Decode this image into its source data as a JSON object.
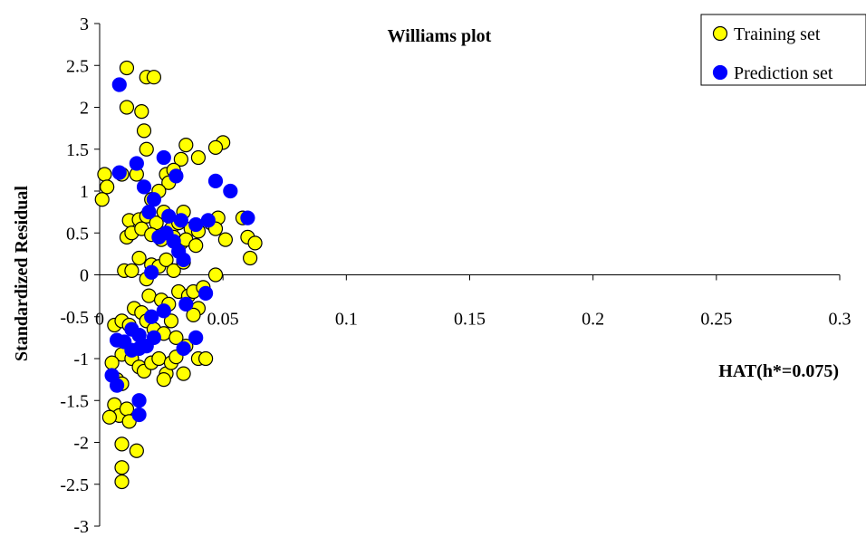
{
  "chart_data": {
    "type": "scatter",
    "title": "Williams plot",
    "xlabel": "HAT(h*=0.075)",
    "ylabel": "Standardized Residual",
    "xlim": [
      0,
      0.3
    ],
    "ylim": [
      -3,
      3
    ],
    "x_ticks": [
      "0",
      "0.05",
      "0.1",
      "0.15",
      "0.2",
      "0.25",
      "0.3"
    ],
    "y_ticks": [
      "3",
      "2.5",
      "2",
      "1.5",
      "1",
      "0.5",
      "0",
      "-0.5",
      "-1",
      "-1.5",
      "-2",
      "-2.5",
      "-3"
    ],
    "x_tick_values": [
      0,
      0.05,
      0.1,
      0.15,
      0.2,
      0.25,
      0.3
    ],
    "y_tick_values": [
      3,
      2.5,
      2,
      1.5,
      1,
      0.5,
      0,
      -0.5,
      -1,
      -1.5,
      -2,
      -2.5,
      -3
    ],
    "grid": false,
    "legend_position": "top-right",
    "series": [
      {
        "name": "Training set",
        "color": "#ffff00",
        "edge_color": "#000000",
        "points": [
          [
            0.011,
            2.47
          ],
          [
            0.011,
            2.0
          ],
          [
            0.017,
            1.95
          ],
          [
            0.019,
            2.36
          ],
          [
            0.022,
            2.36
          ],
          [
            0.018,
            1.72
          ],
          [
            0.019,
            1.5
          ],
          [
            0.035,
            1.55
          ],
          [
            0.05,
            1.58
          ],
          [
            0.047,
            1.52
          ],
          [
            0.002,
            1.2
          ],
          [
            0.003,
            1.05
          ],
          [
            0.001,
            0.9
          ],
          [
            0.009,
            1.2
          ],
          [
            0.015,
            1.2
          ],
          [
            0.027,
            1.2
          ],
          [
            0.033,
            1.38
          ],
          [
            0.04,
            1.4
          ],
          [
            0.028,
            1.1
          ],
          [
            0.03,
            1.25
          ],
          [
            0.021,
            0.9
          ],
          [
            0.024,
            1.0
          ],
          [
            0.012,
            0.65
          ],
          [
            0.016,
            0.66
          ],
          [
            0.019,
            0.7
          ],
          [
            0.023,
            0.62
          ],
          [
            0.026,
            0.75
          ],
          [
            0.029,
            0.55
          ],
          [
            0.032,
            0.62
          ],
          [
            0.034,
            0.75
          ],
          [
            0.037,
            0.55
          ],
          [
            0.04,
            0.52
          ],
          [
            0.045,
            0.62
          ],
          [
            0.048,
            0.68
          ],
          [
            0.047,
            0.55
          ],
          [
            0.051,
            0.42
          ],
          [
            0.058,
            0.68
          ],
          [
            0.06,
            0.45
          ],
          [
            0.063,
            0.38
          ],
          [
            0.061,
            0.2
          ],
          [
            0.011,
            0.45
          ],
          [
            0.013,
            0.5
          ],
          [
            0.017,
            0.55
          ],
          [
            0.021,
            0.48
          ],
          [
            0.025,
            0.42
          ],
          [
            0.03,
            0.45
          ],
          [
            0.033,
            0.38
          ],
          [
            0.035,
            0.42
          ],
          [
            0.039,
            0.35
          ],
          [
            0.01,
            0.05
          ],
          [
            0.013,
            0.05
          ],
          [
            0.016,
            0.2
          ],
          [
            0.019,
            -0.05
          ],
          [
            0.021,
            0.12
          ],
          [
            0.024,
            0.1
          ],
          [
            0.027,
            0.18
          ],
          [
            0.03,
            0.05
          ],
          [
            0.034,
            0.15
          ],
          [
            0.047,
            0.0
          ],
          [
            0.02,
            -0.25
          ],
          [
            0.025,
            -0.3
          ],
          [
            0.028,
            -0.35
          ],
          [
            0.032,
            -0.2
          ],
          [
            0.036,
            -0.25
          ],
          [
            0.04,
            -0.4
          ],
          [
            0.038,
            -0.2
          ],
          [
            0.042,
            -0.15
          ],
          [
            0.014,
            -0.4
          ],
          [
            0.017,
            -0.45
          ],
          [
            0.006,
            -0.6
          ],
          [
            0.009,
            -0.55
          ],
          [
            0.012,
            -0.6
          ],
          [
            0.016,
            -0.72
          ],
          [
            0.019,
            -0.55
          ],
          [
            0.022,
            -0.65
          ],
          [
            0.026,
            -0.7
          ],
          [
            0.029,
            -0.55
          ],
          [
            0.035,
            -0.85
          ],
          [
            0.009,
            -0.95
          ],
          [
            0.013,
            -1.0
          ],
          [
            0.016,
            -1.1
          ],
          [
            0.018,
            -1.15
          ],
          [
            0.021,
            -1.05
          ],
          [
            0.024,
            -1.0
          ],
          [
            0.027,
            -1.18
          ],
          [
            0.029,
            -1.05
          ],
          [
            0.031,
            -0.98
          ],
          [
            0.034,
            -1.18
          ],
          [
            0.04,
            -1.0
          ],
          [
            0.043,
            -1.0
          ],
          [
            0.005,
            -1.05
          ],
          [
            0.007,
            -1.25
          ],
          [
            0.009,
            -1.3
          ],
          [
            0.006,
            -1.55
          ],
          [
            0.008,
            -1.68
          ],
          [
            0.004,
            -1.7
          ],
          [
            0.011,
            -1.6
          ],
          [
            0.012,
            -1.75
          ],
          [
            0.009,
            -2.02
          ],
          [
            0.015,
            -2.1
          ],
          [
            0.009,
            -2.3
          ],
          [
            0.009,
            -2.47
          ],
          [
            0.026,
            -1.25
          ],
          [
            0.031,
            -0.75
          ],
          [
            0.038,
            -0.48
          ]
        ]
      },
      {
        "name": "Prediction set",
        "color": "#0000ff",
        "edge_color": "#0000ff",
        "points": [
          [
            0.008,
            2.27
          ],
          [
            0.008,
            1.22
          ],
          [
            0.015,
            1.33
          ],
          [
            0.018,
            1.05
          ],
          [
            0.022,
            0.9
          ],
          [
            0.02,
            0.75
          ],
          [
            0.026,
            1.4
          ],
          [
            0.031,
            1.18
          ],
          [
            0.047,
            1.12
          ],
          [
            0.053,
            1.0
          ],
          [
            0.028,
            0.7
          ],
          [
            0.033,
            0.65
          ],
          [
            0.039,
            0.6
          ],
          [
            0.044,
            0.65
          ],
          [
            0.06,
            0.68
          ],
          [
            0.024,
            0.45
          ],
          [
            0.027,
            0.5
          ],
          [
            0.03,
            0.4
          ],
          [
            0.032,
            0.28
          ],
          [
            0.034,
            0.18
          ],
          [
            0.021,
            0.03
          ],
          [
            0.026,
            -0.43
          ],
          [
            0.035,
            -0.35
          ],
          [
            0.043,
            -0.22
          ],
          [
            0.021,
            -0.5
          ],
          [
            0.013,
            -0.65
          ],
          [
            0.016,
            -0.72
          ],
          [
            0.007,
            -0.78
          ],
          [
            0.01,
            -0.8
          ],
          [
            0.013,
            -0.9
          ],
          [
            0.016,
            -0.88
          ],
          [
            0.019,
            -0.85
          ],
          [
            0.022,
            -0.75
          ],
          [
            0.034,
            -0.88
          ],
          [
            0.039,
            -0.75
          ],
          [
            0.005,
            -1.2
          ],
          [
            0.007,
            -1.32
          ],
          [
            0.016,
            -1.5
          ],
          [
            0.016,
            -1.67
          ]
        ]
      }
    ]
  }
}
